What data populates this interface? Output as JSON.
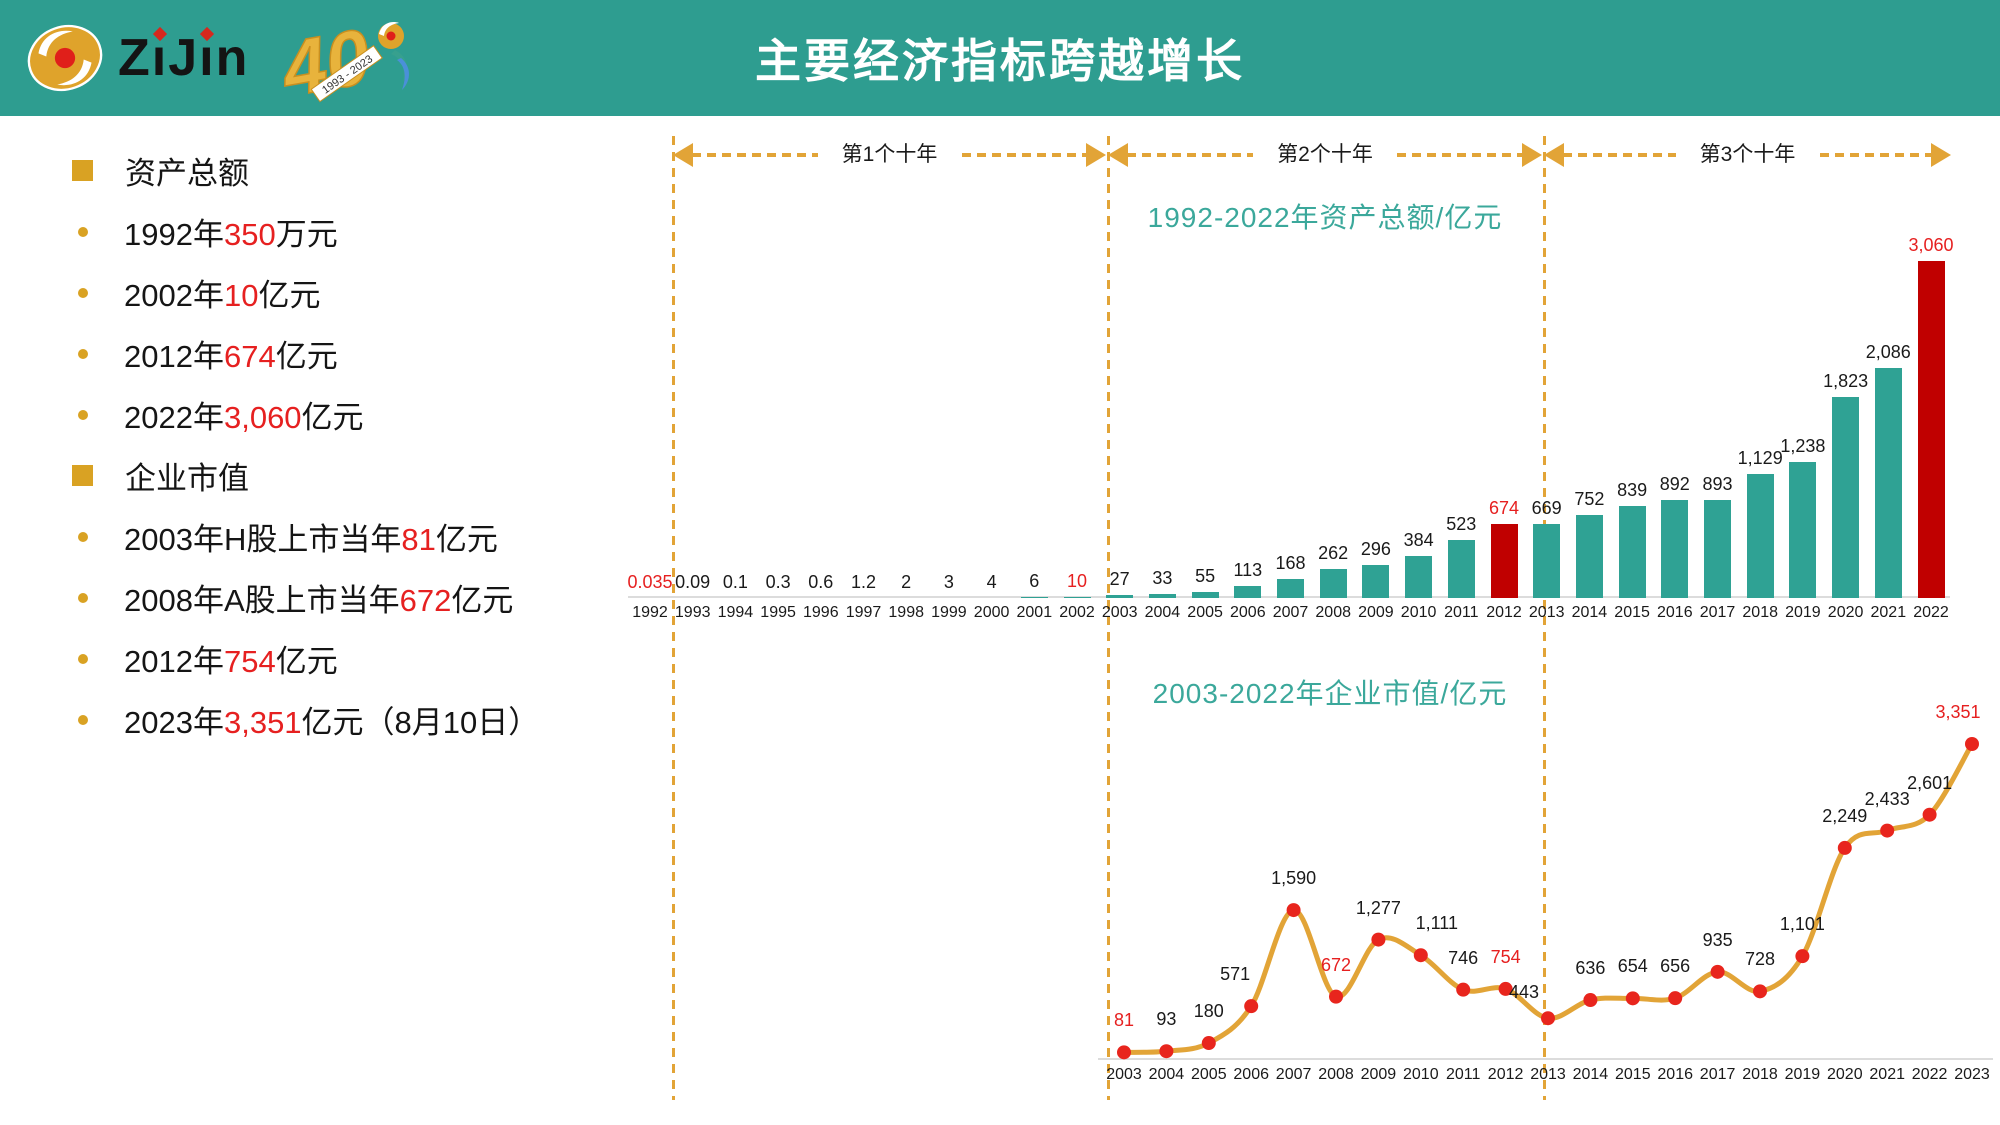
{
  "header": {
    "title": "主要经济指标跨越增长",
    "logo_text": "ZiJin",
    "anniversary_number": "40",
    "anniversary_years": "1993 - 2023"
  },
  "colors": {
    "header_teal": "#2E9D90",
    "bar_teal": "#2FA294",
    "highlight_red": "#C00000",
    "text_red": "#E62020",
    "gold": "#E2A437",
    "point_red": "#E8251D",
    "chart_title_teal": "#3BA89B"
  },
  "left_panel": {
    "sections": [
      {
        "heading": "资产总额",
        "items": [
          [
            {
              "t": "1992年"
            },
            {
              "t": "350",
              "red": true
            },
            {
              "t": "万元"
            }
          ],
          [
            {
              "t": "2002年"
            },
            {
              "t": "10",
              "red": true
            },
            {
              "t": "亿元"
            }
          ],
          [
            {
              "t": "2012年"
            },
            {
              "t": "674",
              "red": true
            },
            {
              "t": "亿元"
            }
          ],
          [
            {
              "t": "2022年"
            },
            {
              "t": "3,060",
              "red": true
            },
            {
              "t": "亿元"
            }
          ]
        ]
      },
      {
        "heading": "企业市值",
        "items": [
          [
            {
              "t": "2003年H股上市当年"
            },
            {
              "t": "81",
              "red": true
            },
            {
              "t": "亿元"
            }
          ],
          [
            {
              "t": "2008年A股上市当年"
            },
            {
              "t": "672",
              "red": true
            },
            {
              "t": "亿元"
            }
          ],
          [
            {
              "t": "2012年"
            },
            {
              "t": "754",
              "red": true
            },
            {
              "t": "亿元"
            }
          ],
          [
            {
              "t": "2023年"
            },
            {
              "t": "3,351",
              "red": true
            },
            {
              "t": "亿元（8月10日）"
            }
          ]
        ]
      }
    ]
  },
  "decades": {
    "labels": [
      "第1个十年",
      "第2个十年",
      "第3个十年"
    ]
  },
  "chart_data": [
    {
      "type": "bar",
      "title": "1992-2022年资产总额/亿元",
      "ylabel": "亿元",
      "ylim": [
        0,
        3060
      ],
      "grid": false,
      "categories": [
        "1992",
        "1993",
        "1994",
        "1995",
        "1996",
        "1997",
        "1998",
        "1999",
        "2000",
        "2001",
        "2002",
        "2003",
        "2004",
        "2005",
        "2006",
        "2007",
        "2008",
        "2009",
        "2010",
        "2011",
        "2012",
        "2013",
        "2014",
        "2015",
        "2016",
        "2017",
        "2018",
        "2019",
        "2020",
        "2021",
        "2022"
      ],
      "values": [
        0.035,
        0.09,
        0.1,
        0.3,
        0.6,
        1.2,
        2,
        3,
        4,
        6,
        10,
        27,
        33,
        55,
        113,
        168,
        262,
        296,
        384,
        523,
        674,
        669,
        752,
        839,
        892,
        893,
        1129,
        1238,
        1823,
        2086,
        3060
      ],
      "labels": [
        "0.035",
        "0.09",
        "0.1",
        "0.3",
        "0.6",
        "1.2",
        "2",
        "3",
        "4",
        "6",
        "10",
        "27",
        "33",
        "55",
        "113",
        "168",
        "262",
        "296",
        "384",
        "523",
        "674",
        "669",
        "752",
        "839",
        "892",
        "893",
        "1,129",
        "1,238",
        "1,823",
        "2,086",
        "3,060"
      ],
      "red_label_years": [
        "1992",
        "2002",
        "2012",
        "2022"
      ],
      "red_bar_years": [
        "2012",
        "2022"
      ]
    },
    {
      "type": "line",
      "title": "2003-2022年企业市值/亿元",
      "ylabel": "亿元",
      "ylim": [
        0,
        3351
      ],
      "grid": false,
      "categories": [
        "2003",
        "2004",
        "2005",
        "2006",
        "2007",
        "2008",
        "2009",
        "2010",
        "2011",
        "2012",
        "2013",
        "2014",
        "2015",
        "2016",
        "2017",
        "2018",
        "2019",
        "2020",
        "2021",
        "2022",
        "2023"
      ],
      "values": [
        81,
        93,
        180,
        571,
        1590,
        672,
        1277,
        1111,
        746,
        754,
        443,
        636,
        654,
        656,
        935,
        728,
        1101,
        2249,
        2433,
        2601,
        3351
      ],
      "labels": [
        "81",
        "93",
        "180",
        "571",
        "1,590",
        "672",
        "1,277",
        "1,111",
        "746",
        "754",
        "443",
        "636",
        "654",
        "656",
        "935",
        "728",
        "1,101",
        "2,249",
        "2,433",
        "2,601",
        "3,351"
      ],
      "red_label_years": [
        "2003",
        "2008",
        "2012",
        "2023"
      ],
      "label_offsets": {
        "2006": {
          "dx": -16
        },
        "2010": {
          "dx": 16
        },
        "2013": {
          "dx": -24,
          "dy": 6
        },
        "2023": {
          "dx": -14
        }
      }
    }
  ]
}
